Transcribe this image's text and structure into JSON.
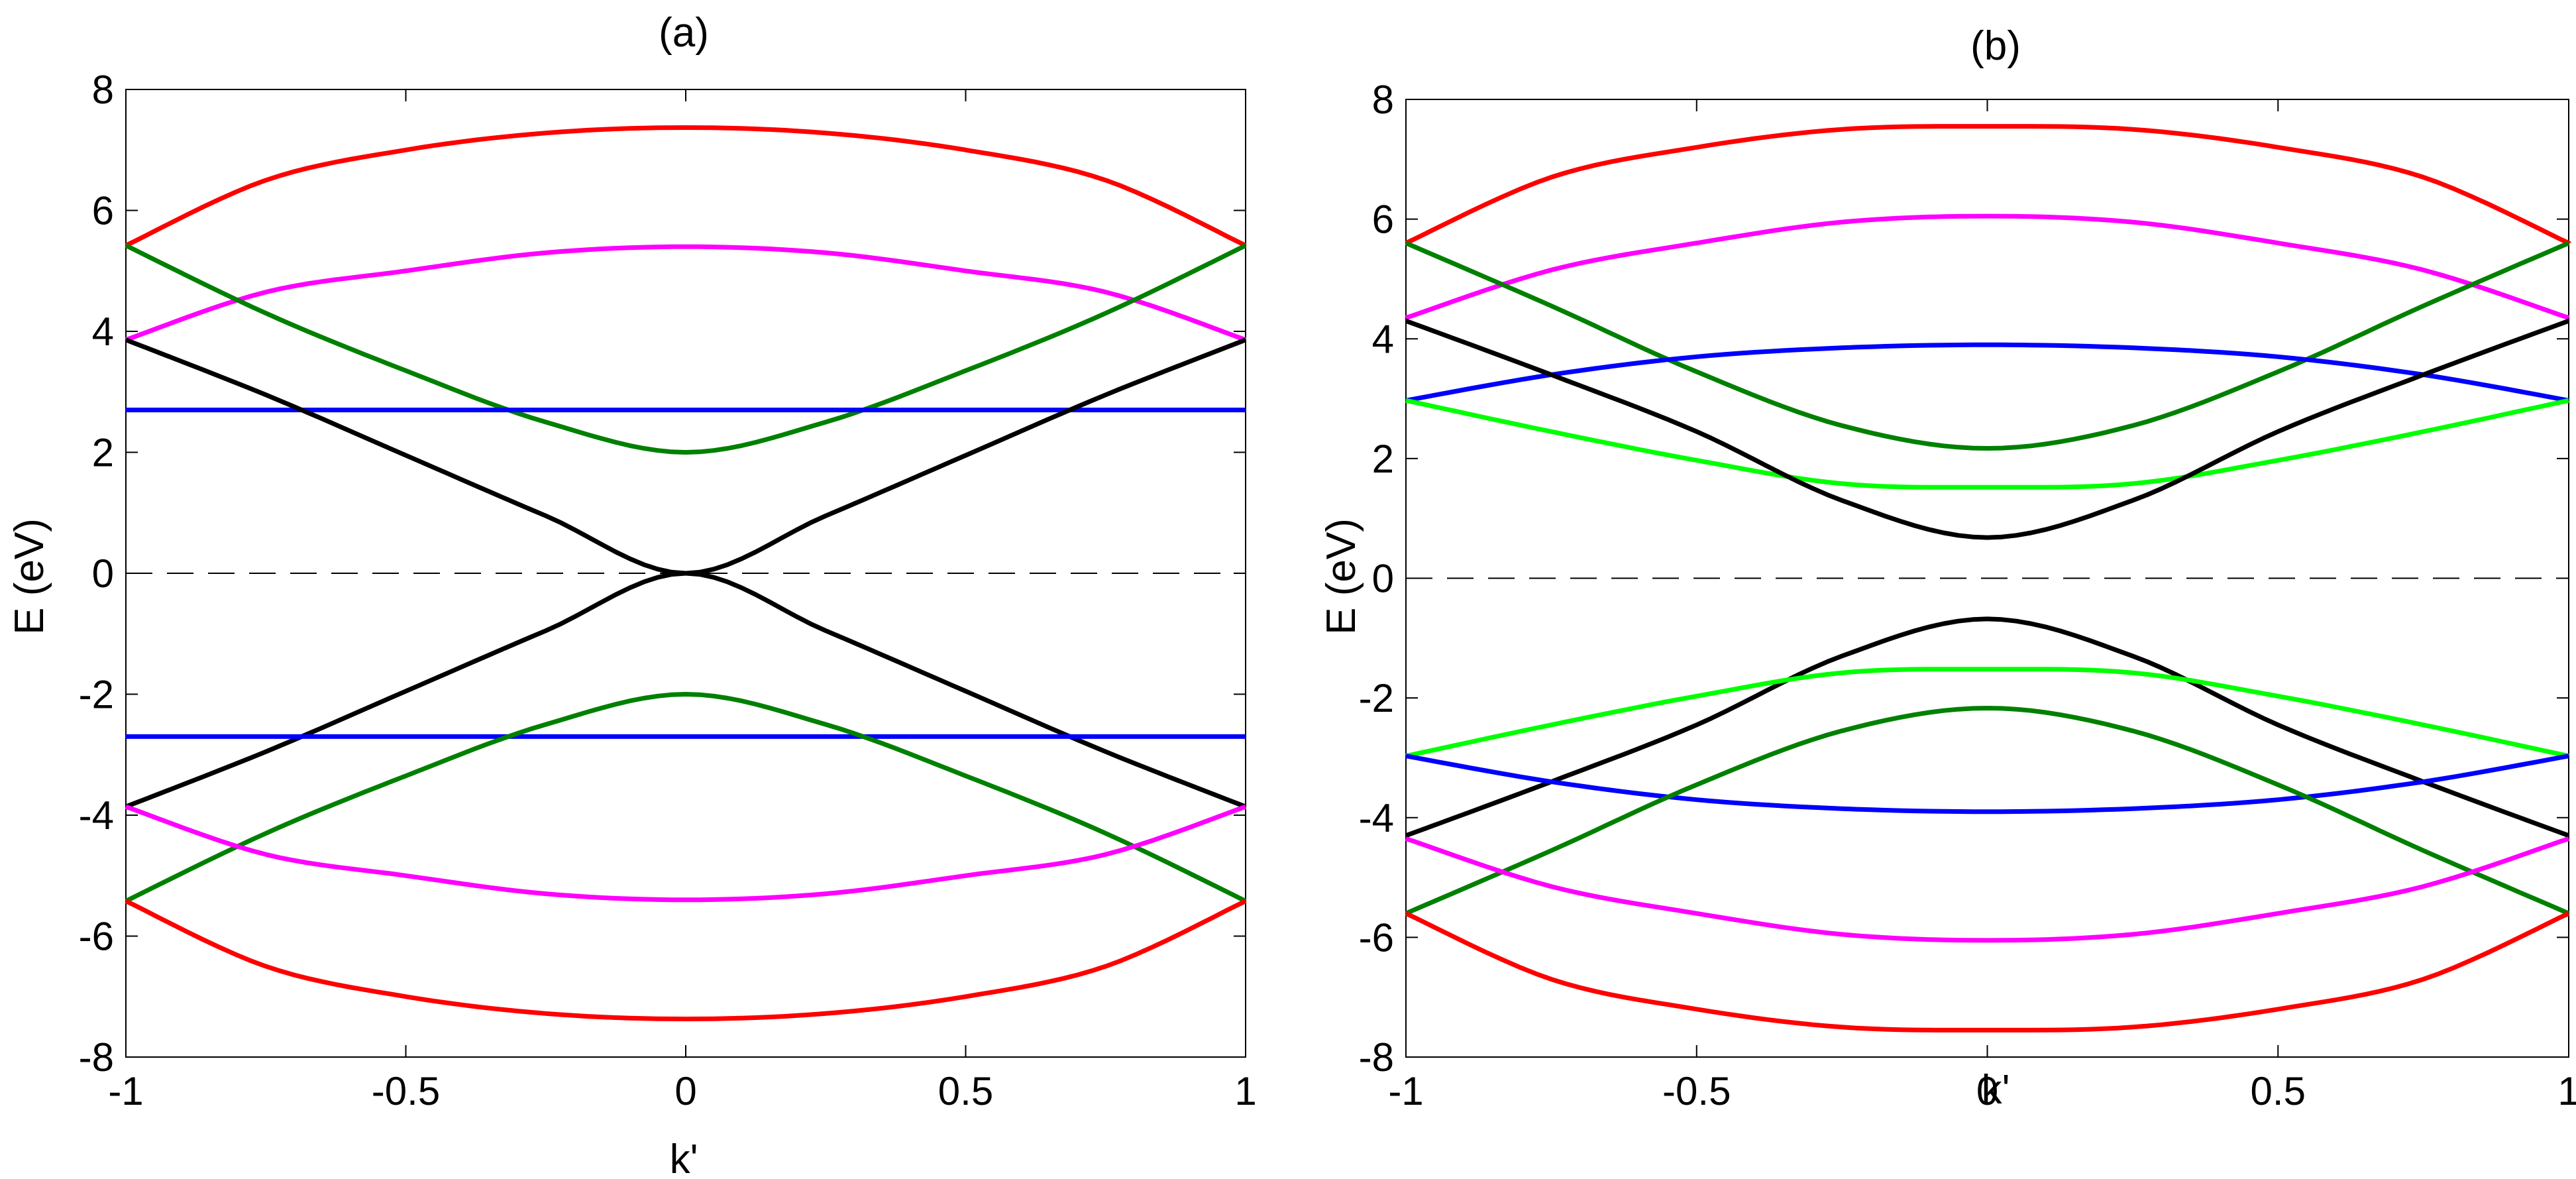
{
  "figure": {
    "background": "#ffffff"
  },
  "chart_data": [
    {
      "type": "line",
      "title": "(a)",
      "xlabel": "k'",
      "ylabel": "E (eV)",
      "xlim": [
        -1,
        1
      ],
      "ylim": [
        -8,
        8
      ],
      "xticks": [
        -1,
        -0.5,
        0,
        0.5,
        1
      ],
      "xtick_labels": [
        "-1",
        "-0.5",
        "0",
        "0.5",
        "1"
      ],
      "yticks": [
        -8,
        -6,
        -4,
        -2,
        0,
        2,
        4,
        6,
        8
      ],
      "ytick_labels": [
        "-8",
        "-6",
        "-4",
        "-2",
        "0",
        "2",
        "4",
        "6",
        "8"
      ],
      "grid": false,
      "zero_line": {
        "y": 0,
        "style": "dashed",
        "color": "#000000"
      },
      "x": [
        -1,
        -0.75,
        -0.5,
        -0.25,
        0,
        0.25,
        0.5,
        0.75,
        1
      ],
      "series": [
        {
          "color": "#ff0000",
          "values": [
            5.42,
            6.5,
            7.0,
            7.28,
            7.37,
            7.28,
            7.0,
            6.5,
            5.42
          ]
        },
        {
          "color": "#ff00ff",
          "values": [
            3.86,
            4.65,
            5.0,
            5.3,
            5.4,
            5.3,
            5.0,
            4.65,
            3.86
          ]
        },
        {
          "color": "#008000",
          "values": [
            5.42,
            4.3,
            3.35,
            2.5,
            2.0,
            2.5,
            3.35,
            4.3,
            5.42
          ]
        },
        {
          "color": "#0000ff",
          "values": [
            2.7,
            2.7,
            2.7,
            2.7,
            2.7,
            2.7,
            2.7,
            2.7,
            2.7
          ]
        },
        {
          "color": "#000000",
          "values": [
            3.86,
            2.95,
            1.95,
            0.95,
            0.0,
            0.95,
            1.95,
            2.95,
            3.86
          ]
        },
        {
          "color": "#000000",
          "values": [
            -3.86,
            -2.95,
            -1.95,
            -0.95,
            0.0,
            -0.95,
            -1.95,
            -2.95,
            -3.86
          ]
        },
        {
          "color": "#0000ff",
          "values": [
            -2.7,
            -2.7,
            -2.7,
            -2.7,
            -2.7,
            -2.7,
            -2.7,
            -2.7,
            -2.7
          ]
        },
        {
          "color": "#008000",
          "values": [
            -5.42,
            -4.3,
            -3.35,
            -2.5,
            -2.0,
            -2.5,
            -3.35,
            -4.3,
            -5.42
          ]
        },
        {
          "color": "#ff00ff",
          "values": [
            -3.86,
            -4.65,
            -5.0,
            -5.3,
            -5.4,
            -5.3,
            -5.0,
            -4.65,
            -3.86
          ]
        },
        {
          "color": "#ff0000",
          "values": [
            -5.42,
            -6.5,
            -7.0,
            -7.28,
            -7.37,
            -7.28,
            -7.0,
            -6.5,
            -5.42
          ]
        }
      ]
    },
    {
      "type": "line",
      "title": "(b)",
      "xlabel": "k'",
      "ylabel": "E (eV)",
      "xlim": [
        -1,
        1
      ],
      "ylim": [
        -8,
        8
      ],
      "xticks": [
        -1,
        -0.5,
        0,
        0.5,
        1
      ],
      "xtick_labels": [
        "-1",
        "-0.5",
        "0",
        "0.5",
        "1"
      ],
      "yticks": [
        -8,
        -6,
        -4,
        -2,
        0,
        2,
        4,
        6,
        8
      ],
      "ytick_labels": [
        "-8",
        "-6",
        "-4",
        "-2",
        "0",
        "2",
        "4",
        "6",
        "8"
      ],
      "grid": false,
      "zero_line": {
        "y": 0,
        "style": "dashed",
        "color": "#000000"
      },
      "x": [
        -1,
        -0.75,
        -0.5,
        -0.25,
        0,
        0.25,
        0.5,
        0.75,
        1
      ],
      "series": [
        {
          "color": "#ff0000",
          "values": [
            5.6,
            6.7,
            7.2,
            7.5,
            7.55,
            7.5,
            7.2,
            6.7,
            5.6
          ]
        },
        {
          "color": "#ff00ff",
          "values": [
            4.35,
            5.15,
            5.6,
            5.95,
            6.05,
            5.95,
            5.6,
            5.15,
            4.35
          ]
        },
        {
          "color": "#008000",
          "values": [
            5.6,
            4.55,
            3.45,
            2.55,
            2.17,
            2.55,
            3.45,
            4.55,
            5.6
          ]
        },
        {
          "color": "#0000ff",
          "values": [
            2.97,
            3.4,
            3.7,
            3.85,
            3.9,
            3.85,
            3.7,
            3.4,
            2.97
          ]
        },
        {
          "color": "#00ff00",
          "values": [
            2.97,
            2.45,
            1.97,
            1.58,
            1.52,
            1.58,
            1.97,
            2.45,
            2.97
          ]
        },
        {
          "color": "#000000",
          "values": [
            4.3,
            3.4,
            2.45,
            1.3,
            0.68,
            1.3,
            2.45,
            3.4,
            4.3
          ]
        },
        {
          "color": "#000000",
          "values": [
            -4.3,
            -3.4,
            -2.45,
            -1.3,
            -0.68,
            -1.3,
            -2.45,
            -3.4,
            -4.3
          ]
        },
        {
          "color": "#00ff00",
          "values": [
            -2.97,
            -2.45,
            -1.97,
            -1.58,
            -1.52,
            -1.58,
            -1.97,
            -2.45,
            -2.97
          ]
        },
        {
          "color": "#0000ff",
          "values": [
            -2.97,
            -3.4,
            -3.7,
            -3.85,
            -3.9,
            -3.85,
            -3.7,
            -3.4,
            -2.97
          ]
        },
        {
          "color": "#008000",
          "values": [
            -5.6,
            -4.55,
            -3.45,
            -2.55,
            -2.17,
            -2.55,
            -3.45,
            -4.55,
            -5.6
          ]
        },
        {
          "color": "#ff00ff",
          "values": [
            -4.35,
            -5.15,
            -5.6,
            -5.95,
            -6.05,
            -5.95,
            -5.6,
            -5.15,
            -4.35
          ]
        },
        {
          "color": "#ff0000",
          "values": [
            -5.6,
            -6.7,
            -7.2,
            -7.5,
            -7.55,
            -7.5,
            -7.2,
            -6.7,
            -5.6
          ]
        }
      ]
    }
  ]
}
